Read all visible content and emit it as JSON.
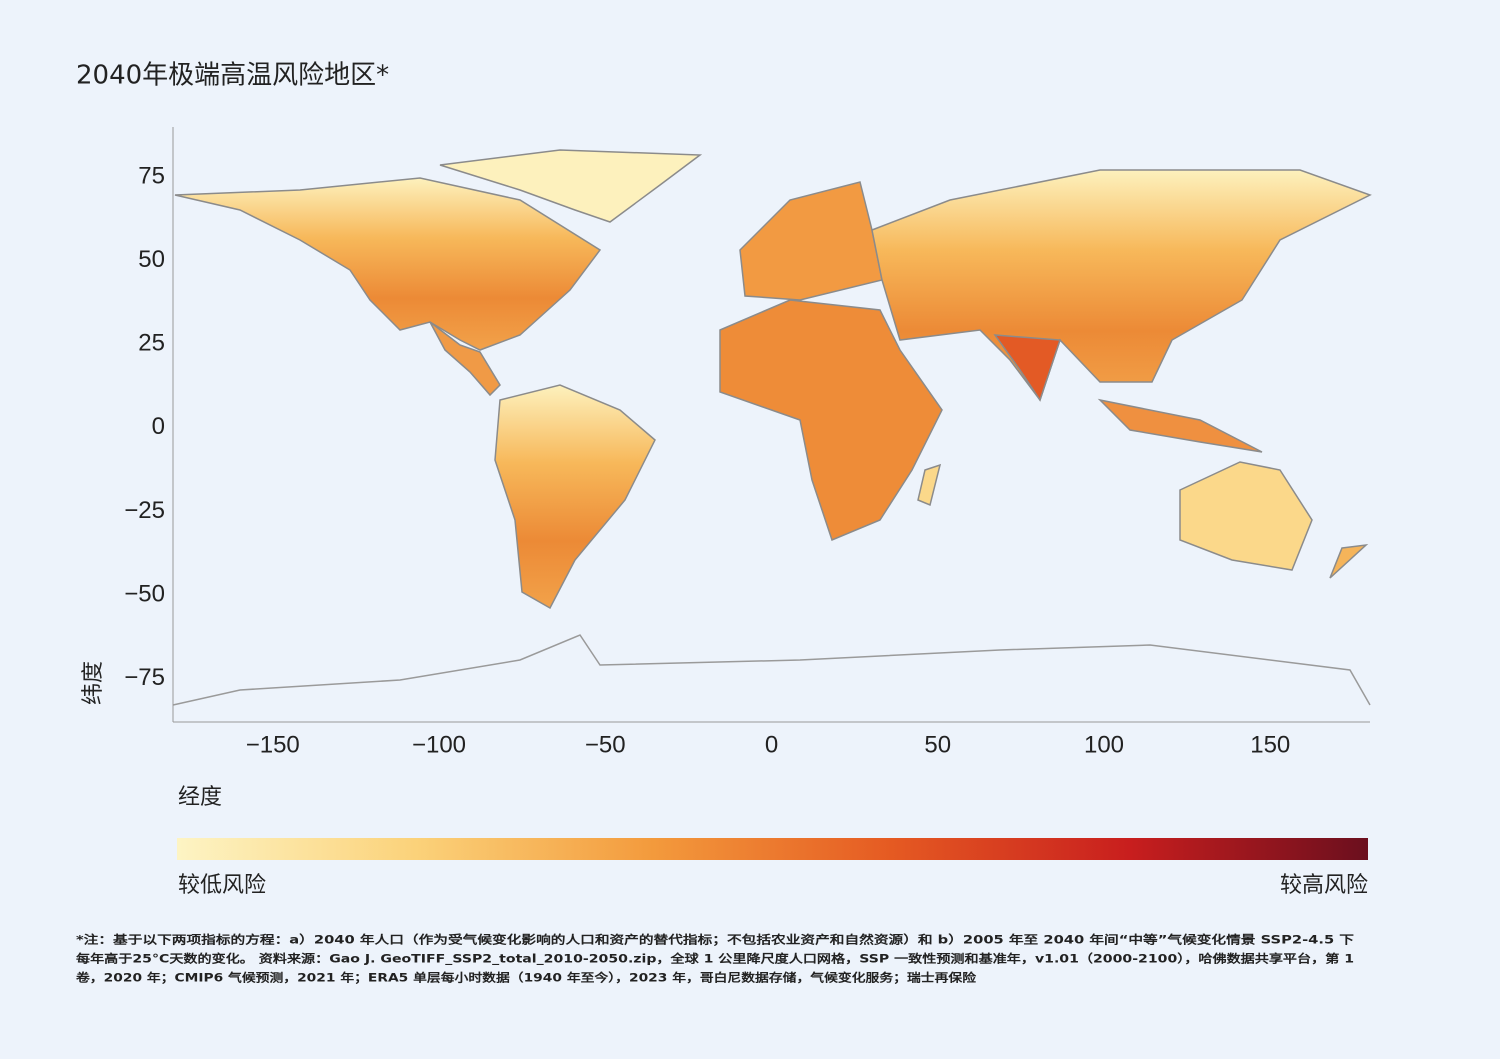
{
  "chart_data": {
    "type": "map",
    "title": "2040年极端高温风险地区*",
    "x_label": "经度",
    "y_label": "纬度",
    "xlim": [
      -180,
      180
    ],
    "ylim": [
      -88,
      90
    ],
    "xticks": [
      {
        "value": -150,
        "label": "−150"
      },
      {
        "value": -100,
        "label": "−100"
      },
      {
        "value": -50,
        "label": "−50"
      },
      0,
      50,
      100,
      150
    ],
    "yticks": [
      75,
      50,
      25,
      0,
      {
        "value": -25,
        "label": "−25"
      },
      {
        "value": -50,
        "label": "−50"
      },
      {
        "value": -75,
        "label": "−75"
      }
    ],
    "colorscale": [
      "#fdf4c4",
      "#fbd27a",
      "#f39a3c",
      "#e55a22",
      "#c81e1e",
      "#6b0f1e"
    ],
    "colorbar_low_label": "较低风险",
    "colorbar_high_label": "较高风险",
    "footnote": [
      "*注：基于以下两项指标的方程：a）2040 年人口（作为受气候变化影响的人口和资产的替代指标；不包括农业资产和自然资源）和 b）2005 年至 2040 年间“中等”气候变化情景 SSP2-4.5 下",
      "每年高于25°C天数的变化。  资料来源：Gao J. GeoTIFF_SSP2_total_2010-2050.zip，全球 1 公里降尺度人口网格，SSP 一致性预测和基准年，v1.01（2000-2100），哈佛数据共享平台，第 1",
      "卷，2020 年；CMIP6 气候预测，2021 年；ERA5 单层每小时数据（1940 年至今），2023 年，哥白尼数据存储，气候变化服务；瑞士再保险"
    ]
  }
}
